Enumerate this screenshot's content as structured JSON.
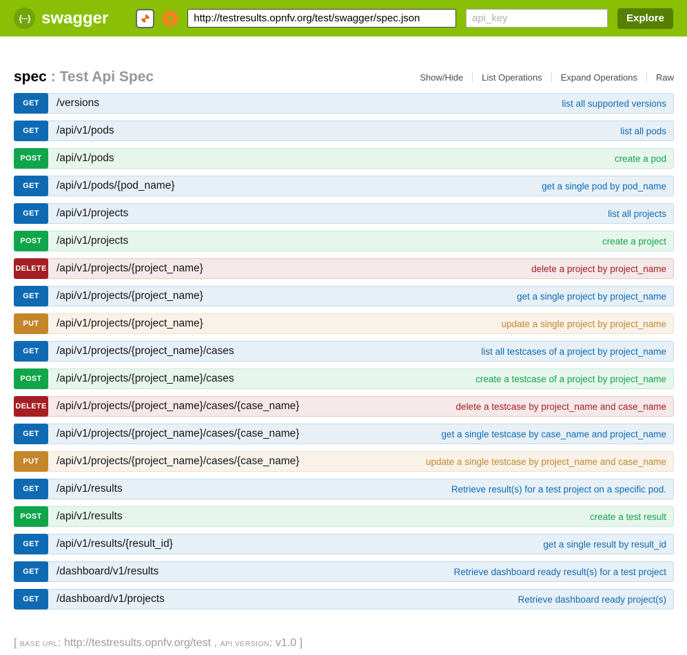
{
  "header": {
    "brand": "swagger",
    "logo_glyph": "{···}",
    "url_input": "http://testresults.opnfv.org/test/swagger/spec.json",
    "api_key_placeholder": "api_key",
    "explore_label": "Explore"
  },
  "page": {
    "title": "spec",
    "title_separator": ":",
    "title_description": "Test Api Spec",
    "menu": [
      "Show/Hide",
      "List Operations",
      "Expand Operations",
      "Raw"
    ]
  },
  "endpoints": [
    {
      "method": "GET",
      "path": "/versions",
      "summary": "list all supported versions"
    },
    {
      "method": "GET",
      "path": "/api/v1/pods",
      "summary": "list all pods"
    },
    {
      "method": "POST",
      "path": "/api/v1/pods",
      "summary": "create a pod"
    },
    {
      "method": "GET",
      "path": "/api/v1/pods/{pod_name}",
      "summary": "get a single pod by pod_name"
    },
    {
      "method": "GET",
      "path": "/api/v1/projects",
      "summary": "list all projects"
    },
    {
      "method": "POST",
      "path": "/api/v1/projects",
      "summary": "create a project"
    },
    {
      "method": "DELETE",
      "path": "/api/v1/projects/{project_name}",
      "summary": "delete a project by project_name"
    },
    {
      "method": "GET",
      "path": "/api/v1/projects/{project_name}",
      "summary": "get a single project by project_name"
    },
    {
      "method": "PUT",
      "path": "/api/v1/projects/{project_name}",
      "summary": "update a single project by project_name"
    },
    {
      "method": "GET",
      "path": "/api/v1/projects/{project_name}/cases",
      "summary": "list all testcases of a project by project_name"
    },
    {
      "method": "POST",
      "path": "/api/v1/projects/{project_name}/cases",
      "summary": "create a testcase of a project by project_name"
    },
    {
      "method": "DELETE",
      "path": "/api/v1/projects/{project_name}/cases/{case_name}",
      "summary": "delete a testcase by project_name and case_name"
    },
    {
      "method": "GET",
      "path": "/api/v1/projects/{project_name}/cases/{case_name}",
      "summary": "get a single testcase by case_name and project_name"
    },
    {
      "method": "PUT",
      "path": "/api/v1/projects/{project_name}/cases/{case_name}",
      "summary": "update a single testcase by project_name and case_name"
    },
    {
      "method": "GET",
      "path": "/api/v1/results",
      "summary": "Retrieve result(s) for a test project on a specific pod."
    },
    {
      "method": "POST",
      "path": "/api/v1/results",
      "summary": "create a test result"
    },
    {
      "method": "GET",
      "path": "/api/v1/results/{result_id}",
      "summary": "get a single result by result_id"
    },
    {
      "method": "GET",
      "path": "/dashboard/v1/results",
      "summary": "Retrieve dashboard ready result(s) for a test project"
    },
    {
      "method": "GET",
      "path": "/dashboard/v1/projects",
      "summary": "Retrieve dashboard ready project(s)"
    }
  ],
  "footer": {
    "prefix": "[",
    "base_url_label": "base url",
    "colon1": ":",
    "base_url": "http://testresults.opnfv.org/test",
    "separator": ",",
    "api_version_label": "api version",
    "colon2": ":",
    "api_version": "v1.0",
    "suffix": "]"
  },
  "colors": {
    "header_bg": "#89bf04",
    "explore_bg": "#547f00",
    "get": "#0f6ab4",
    "post": "#10a54a",
    "put": "#c5862b",
    "delete": "#a41e22"
  }
}
